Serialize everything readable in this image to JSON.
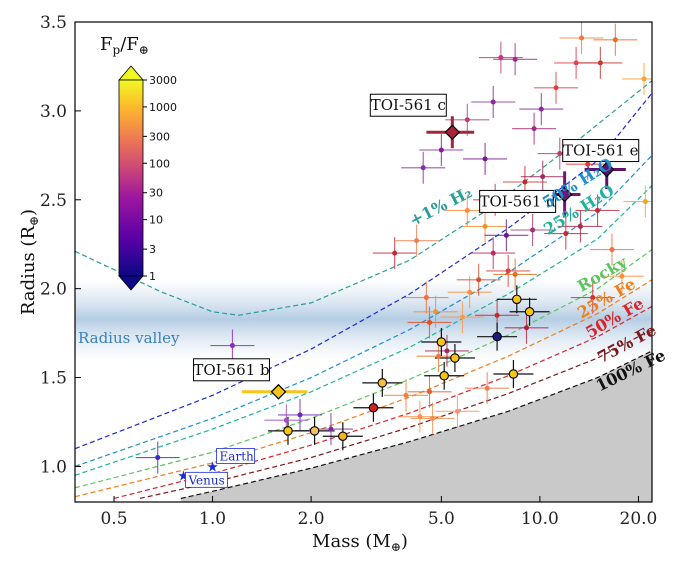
{
  "chart_data": {
    "type": "scatter",
    "xlabel": "Mass (M⊕)",
    "ylabel": "Radius (R⊕)",
    "xscale": "log",
    "xlim": [
      0.38,
      22
    ],
    "ylim": [
      0.8,
      3.5
    ],
    "xticks": [
      {
        "value": 0.5,
        "label": "0.5"
      },
      {
        "value": 1.0,
        "label": "1.0"
      },
      {
        "value": 2.0,
        "label": "2.0"
      },
      {
        "value": 5.0,
        "label": "5.0"
      },
      {
        "value": 10.0,
        "label": "10.0"
      },
      {
        "value": 20.0,
        "label": "20.0"
      }
    ],
    "yticks": [
      {
        "value": 1.0,
        "label": "1.0"
      },
      {
        "value": 1.5,
        "label": "1.5"
      },
      {
        "value": 2.0,
        "label": "2.0"
      },
      {
        "value": 2.5,
        "label": "2.5"
      },
      {
        "value": 3.0,
        "label": "3.0"
      },
      {
        "value": 3.5,
        "label": "3.5"
      }
    ],
    "colorbar": {
      "title": "Fp/F⊕",
      "scale": "log",
      "range": [
        1,
        3000
      ],
      "ticks": [
        "3000",
        "1000",
        "300",
        "100",
        "30",
        "10",
        "3",
        "1"
      ]
    },
    "radius_valley": {
      "label": "Radius valley",
      "center": 1.85
    },
    "composition_curves": [
      {
        "name": "+1% H₂",
        "color": "#2a9d9a",
        "points": [
          [
            0.38,
            2.21
          ],
          [
            0.7,
            1.98
          ],
          [
            1.0,
            1.87
          ],
          [
            1.2,
            1.85
          ],
          [
            2.0,
            1.92
          ],
          [
            4.0,
            2.16
          ],
          [
            7.0,
            2.45
          ],
          [
            12.0,
            2.78
          ],
          [
            22.0,
            3.17
          ]
        ]
      },
      {
        "name": "",
        "color": "#1a2ad6",
        "points": [
          [
            0.38,
            1.1
          ],
          [
            1.0,
            1.4
          ],
          [
            2.0,
            1.66
          ],
          [
            4.0,
            1.97
          ],
          [
            8.0,
            2.34
          ],
          [
            15.0,
            2.72
          ],
          [
            22.0,
            3.1
          ]
        ]
      },
      {
        "name": "50% H₂O",
        "color": "#1d8fd0",
        "points": [
          [
            0.38,
            1.0
          ],
          [
            1.0,
            1.27
          ],
          [
            2.0,
            1.5
          ],
          [
            4.0,
            1.77
          ],
          [
            8.0,
            2.09
          ],
          [
            15.0,
            2.43
          ],
          [
            22.0,
            2.75
          ]
        ]
      },
      {
        "name": "25% H₂O",
        "color": "#20b2a0",
        "points": [
          [
            0.38,
            0.95
          ],
          [
            1.0,
            1.21
          ],
          [
            2.0,
            1.42
          ],
          [
            4.0,
            1.67
          ],
          [
            8.0,
            1.97
          ],
          [
            15.0,
            2.28
          ],
          [
            22.0,
            2.58
          ]
        ]
      },
      {
        "name": "Rocky",
        "color": "#5ec45e",
        "points": [
          [
            0.38,
            0.88
          ],
          [
            1.0,
            1.08
          ],
          [
            2.0,
            1.27
          ],
          [
            4.0,
            1.49
          ],
          [
            8.0,
            1.74
          ],
          [
            15.0,
            2.0
          ],
          [
            22.0,
            2.22
          ]
        ]
      },
      {
        "name": "25% Fe",
        "color": "#f07d1a",
        "points": [
          [
            0.38,
            0.83
          ],
          [
            1.0,
            1.02
          ],
          [
            2.0,
            1.19
          ],
          [
            4.0,
            1.39
          ],
          [
            8.0,
            1.62
          ],
          [
            15.0,
            1.86
          ],
          [
            22.0,
            2.05
          ]
        ]
      },
      {
        "name": "50% Fe",
        "color": "#d6262a",
        "points": [
          [
            0.5,
            0.82
          ],
          [
            1.0,
            0.96
          ],
          [
            2.0,
            1.12
          ],
          [
            4.0,
            1.3
          ],
          [
            8.0,
            1.51
          ],
          [
            15.0,
            1.73
          ],
          [
            22.0,
            1.9
          ]
        ]
      },
      {
        "name": "75% Fe",
        "color": "#7a1a1a",
        "points": [
          [
            0.6,
            0.82
          ],
          [
            1.0,
            0.91
          ],
          [
            2.0,
            1.05
          ],
          [
            4.0,
            1.22
          ],
          [
            8.0,
            1.41
          ],
          [
            15.0,
            1.61
          ],
          [
            22.0,
            1.77
          ]
        ]
      },
      {
        "name": "100% Fe",
        "color": "#111111",
        "points": [
          [
            0.8,
            0.82
          ],
          [
            1.0,
            0.86
          ],
          [
            2.0,
            0.99
          ],
          [
            4.0,
            1.14
          ],
          [
            8.0,
            1.31
          ],
          [
            15.0,
            1.5
          ],
          [
            22.0,
            1.65
          ]
        ]
      }
    ],
    "toi561": [
      {
        "name": "TOI-561 b",
        "mass": 1.59,
        "radius": 1.42,
        "xerr": 0.36,
        "yerr": 0.04,
        "color": "#f5c518"
      },
      {
        "name": "TOI-561 c",
        "mass": 5.4,
        "radius": 2.88,
        "xerr": 0.9,
        "yerr": 0.09,
        "color": "#a8243a"
      },
      {
        "name": "TOI-561 d",
        "mass": 11.9,
        "radius": 2.53,
        "xerr": 1.4,
        "yerr": 0.13,
        "color": "#70187a"
      },
      {
        "name": "TOI-561 e",
        "mass": 16.0,
        "radius": 2.67,
        "xerr": 2.3,
        "yerr": 0.11,
        "color": "#5a1470"
      }
    ],
    "solar_system": [
      {
        "name": "Earth",
        "mass": 1.0,
        "radius": 1.0
      },
      {
        "name": "Venus",
        "mass": 0.815,
        "radius": 0.95
      }
    ],
    "black_edged_points": [
      [
        1.7,
        1.2,
        "#f5c518"
      ],
      [
        2.05,
        1.2,
        "#f0c060"
      ],
      [
        2.5,
        1.17,
        "#f5b520"
      ],
      [
        3.3,
        1.47,
        "#f5c040"
      ],
      [
        3.1,
        1.33,
        "#c8242a"
      ],
      [
        5.1,
        1.51,
        "#f5c518"
      ],
      [
        5.0,
        1.7,
        "#f5c518"
      ],
      [
        5.5,
        1.61,
        "#f5c518"
      ],
      [
        8.3,
        1.52,
        "#f5c518"
      ],
      [
        8.5,
        1.94,
        "#f5c518"
      ],
      [
        9.3,
        1.87,
        "#f5c518"
      ],
      [
        7.4,
        1.73,
        "#1a1a80"
      ]
    ],
    "points": [
      [
        0.68,
        1.05,
        "#3b2ad0"
      ],
      [
        1.15,
        1.68,
        "#8a2ac0"
      ],
      [
        1.68,
        1.26,
        "#a04cc0"
      ],
      [
        1.85,
        1.29,
        "#6a2ab0"
      ],
      [
        2.3,
        1.21,
        "#7a2aa0"
      ],
      [
        3.9,
        1.4,
        "#f08040"
      ],
      [
        4.3,
        1.28,
        "#ff8f4a"
      ],
      [
        4.6,
        1.42,
        "#e06030"
      ],
      [
        4.7,
        1.27,
        "#f09050"
      ],
      [
        5.6,
        1.31,
        "#ff9060"
      ],
      [
        6.9,
        1.44,
        "#f07848"
      ],
      [
        3.6,
        2.2,
        "#c02a3a"
      ],
      [
        4.2,
        2.27,
        "#f08050"
      ],
      [
        4.5,
        1.95,
        "#f07040"
      ],
      [
        4.6,
        1.81,
        "#e05020"
      ],
      [
        4.8,
        1.87,
        "#f59030"
      ],
      [
        4.9,
        1.62,
        "#f07830"
      ],
      [
        5.2,
        1.65,
        "#a02a5a"
      ],
      [
        5.8,
        1.84,
        "#ff9a4a"
      ],
      [
        6.0,
        2.44,
        "#ff8a3a"
      ],
      [
        6.1,
        1.98,
        "#ff8f3f"
      ],
      [
        6.5,
        2.05,
        "#d05030"
      ],
      [
        6.8,
        2.35,
        "#f09030"
      ],
      [
        7.2,
        2.2,
        "#c02a60"
      ],
      [
        7.3,
        2.5,
        "#d03030"
      ],
      [
        7.4,
        1.85,
        "#c02a2a"
      ],
      [
        7.9,
        2.3,
        "#6a1a8a"
      ],
      [
        8.0,
        2.1,
        "#e04040"
      ],
      [
        8.4,
        2.08,
        "#e07020"
      ],
      [
        9.1,
        1.78,
        "#b02040"
      ],
      [
        9.5,
        2.33,
        "#a03070"
      ],
      [
        4.4,
        2.68,
        "#8a2aa0"
      ],
      [
        5.0,
        2.78,
        "#8a1a9a"
      ],
      [
        6.0,
        2.95,
        "#c03a7a"
      ],
      [
        6.8,
        2.73,
        "#7a1a8a"
      ],
      [
        7.2,
        3.05,
        "#8a2a9a"
      ],
      [
        7.6,
        3.3,
        "#c03a7a"
      ],
      [
        8.4,
        3.29,
        "#a02a8a"
      ],
      [
        9.6,
        2.9,
        "#a02a80"
      ],
      [
        10.1,
        3.01,
        "#8a2aa0"
      ],
      [
        11.2,
        3.13,
        "#e04040"
      ],
      [
        12.9,
        3.27,
        "#e04050"
      ],
      [
        13.4,
        3.41,
        "#f07a40"
      ],
      [
        15.3,
        3.27,
        "#c03a30"
      ],
      [
        17.0,
        3.4,
        "#f06a20"
      ],
      [
        20.8,
        3.18,
        "#f5a530"
      ],
      [
        11.5,
        2.76,
        "#c03a6a"
      ],
      [
        12.0,
        2.31,
        "#c02a3a"
      ],
      [
        13.3,
        2.35,
        "#b02a4a"
      ],
      [
        14.0,
        2.7,
        "#e03a3a"
      ],
      [
        15.0,
        2.44,
        "#c02a3a"
      ],
      [
        16.6,
        2.22,
        "#f07040"
      ],
      [
        21.0,
        2.49,
        "#f5a520"
      ],
      [
        17.8,
        2.07,
        "#ff8a3a"
      ],
      [
        9.0,
        2.6,
        "#c02a2a"
      ],
      [
        10.2,
        2.63,
        "#a02a5a"
      ],
      [
        14.5,
        1.95,
        "#d03030"
      ]
    ]
  }
}
